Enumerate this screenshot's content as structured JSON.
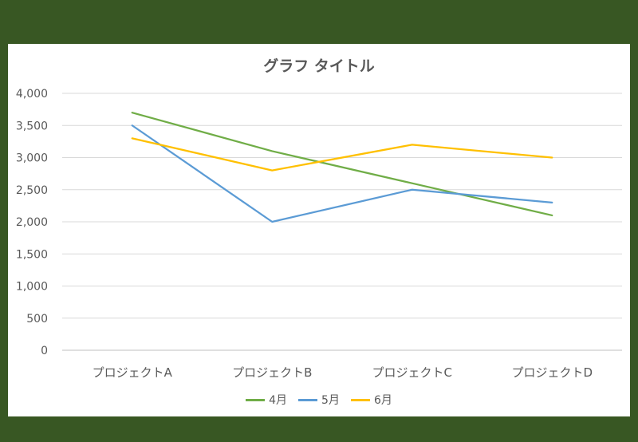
{
  "chart_data": {
    "type": "line",
    "title": "グラフ タイトル",
    "categories": [
      "プロジェクトA",
      "プロジェクトB",
      "プロジェクトC",
      "プロジェクトD"
    ],
    "y_ticks": [
      "4,000",
      "3,500",
      "3,000",
      "2,500",
      "2,000",
      "1,500",
      "1,000",
      "500",
      "0"
    ],
    "ylim": [
      0,
      4000
    ],
    "grid": true,
    "legend_position": "bottom",
    "series": [
      {
        "name": "4月",
        "color": "#70AD47",
        "values": [
          3700,
          3100,
          2600,
          2100
        ]
      },
      {
        "name": "5月",
        "color": "#5B9BD5",
        "values": [
          3500,
          2000,
          2500,
          2300
        ]
      },
      {
        "name": "6月",
        "color": "#FFC000",
        "values": [
          3300,
          2800,
          3200,
          3000
        ]
      }
    ]
  }
}
